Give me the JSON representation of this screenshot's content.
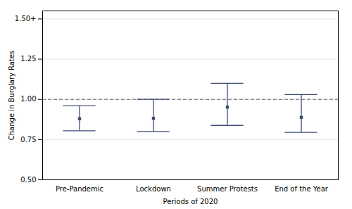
{
  "chart_data": {
    "type": "errorbar",
    "categories": [
      "Pre-Pandemic",
      "Lockdown",
      "Summer Protests",
      "End of the Year"
    ],
    "values": [
      0.88,
      0.882,
      0.952,
      0.888
    ],
    "ci_lower": [
      0.805,
      0.8,
      0.838,
      0.795
    ],
    "ci_upper": [
      0.96,
      1.0,
      1.1,
      1.03
    ],
    "reference_line": 1.0,
    "ylabel": "Change in Burglary Rates",
    "xlabel": "Periods of 2020",
    "color": "#3d4a75",
    "ylim": [
      0.5,
      1.55
    ],
    "yticks": [
      {
        "value": 0.5,
        "label": "0.50"
      },
      {
        "value": 0.75,
        "label": "0.75"
      },
      {
        "value": 1.0,
        "label": "1.00"
      },
      {
        "value": 1.25,
        "label": "1.25"
      },
      {
        "value": 1.5,
        "label": "1.50+"
      }
    ],
    "grid": true
  }
}
